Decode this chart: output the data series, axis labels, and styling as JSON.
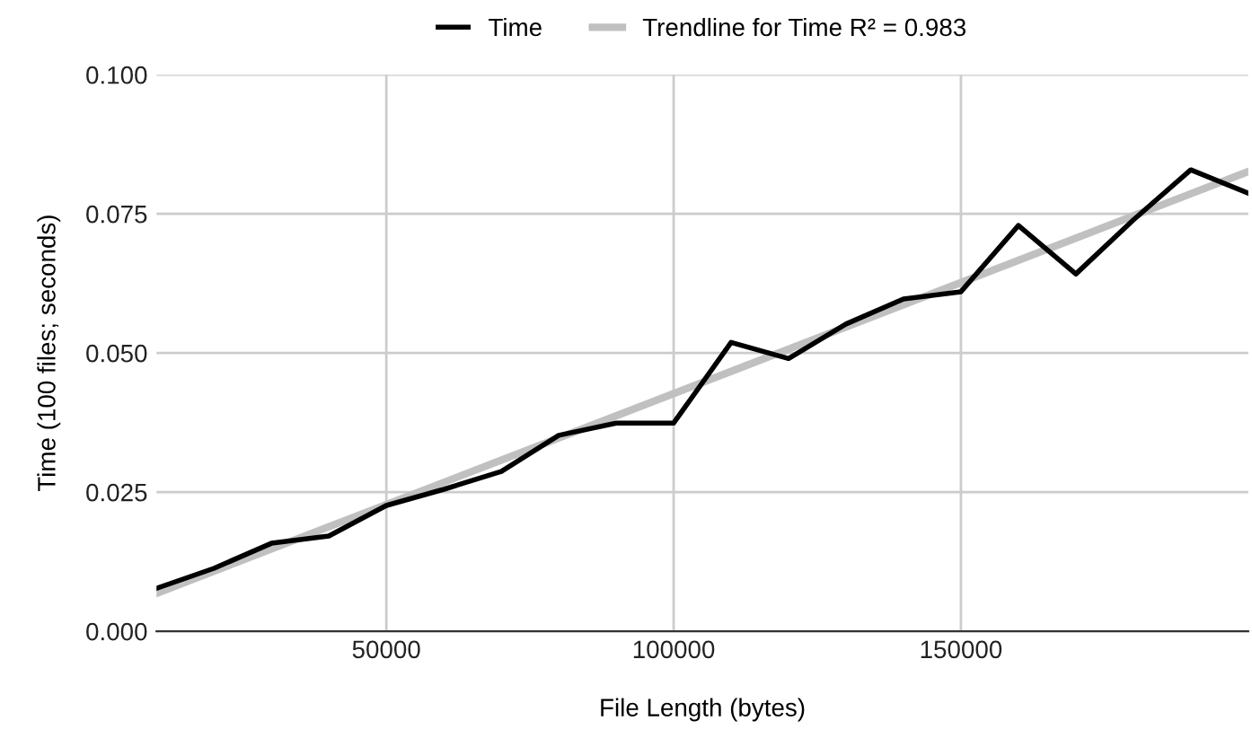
{
  "chart_data": {
    "type": "line",
    "xlabel": "File Length (bytes)",
    "ylabel": "Time (100 files; seconds)",
    "x": [
      10000,
      20000,
      30000,
      40000,
      50000,
      60000,
      70000,
      80000,
      90000,
      100000,
      110000,
      120000,
      130000,
      140000,
      150000,
      160000,
      170000,
      180000,
      190000,
      200000
    ],
    "series": [
      {
        "name": "Time",
        "color": "#000000",
        "values": [
          0.0077,
          0.0113,
          0.0158,
          0.0171,
          0.0226,
          0.0255,
          0.0287,
          0.0352,
          0.0374,
          0.0374,
          0.0519,
          0.049,
          0.0552,
          0.0597,
          0.061,
          0.0729,
          0.0642,
          0.0739,
          0.0829,
          0.0787
        ]
      },
      {
        "name": "Trendline for Time R² = 0.983",
        "color": "#c0c0c0",
        "type": "line",
        "x": [
          10000,
          200000
        ],
        "values": [
          0.0068,
          0.0826
        ]
      }
    ],
    "xlim": [
      10000,
      200000
    ],
    "xticks": [
      50000,
      100000,
      150000
    ],
    "ylim": [
      0,
      0.1
    ],
    "yticks": [
      {
        "value": 0,
        "label": "0.000"
      },
      {
        "value": 0.025,
        "label": "0.025"
      },
      {
        "value": 0.05,
        "label": "0.050"
      },
      {
        "value": 0.075,
        "label": "0.075"
      },
      {
        "value": 0.1,
        "label": "0.100"
      }
    ],
    "grid": true,
    "legend": "top",
    "marker": "none",
    "line_style": "solid"
  }
}
